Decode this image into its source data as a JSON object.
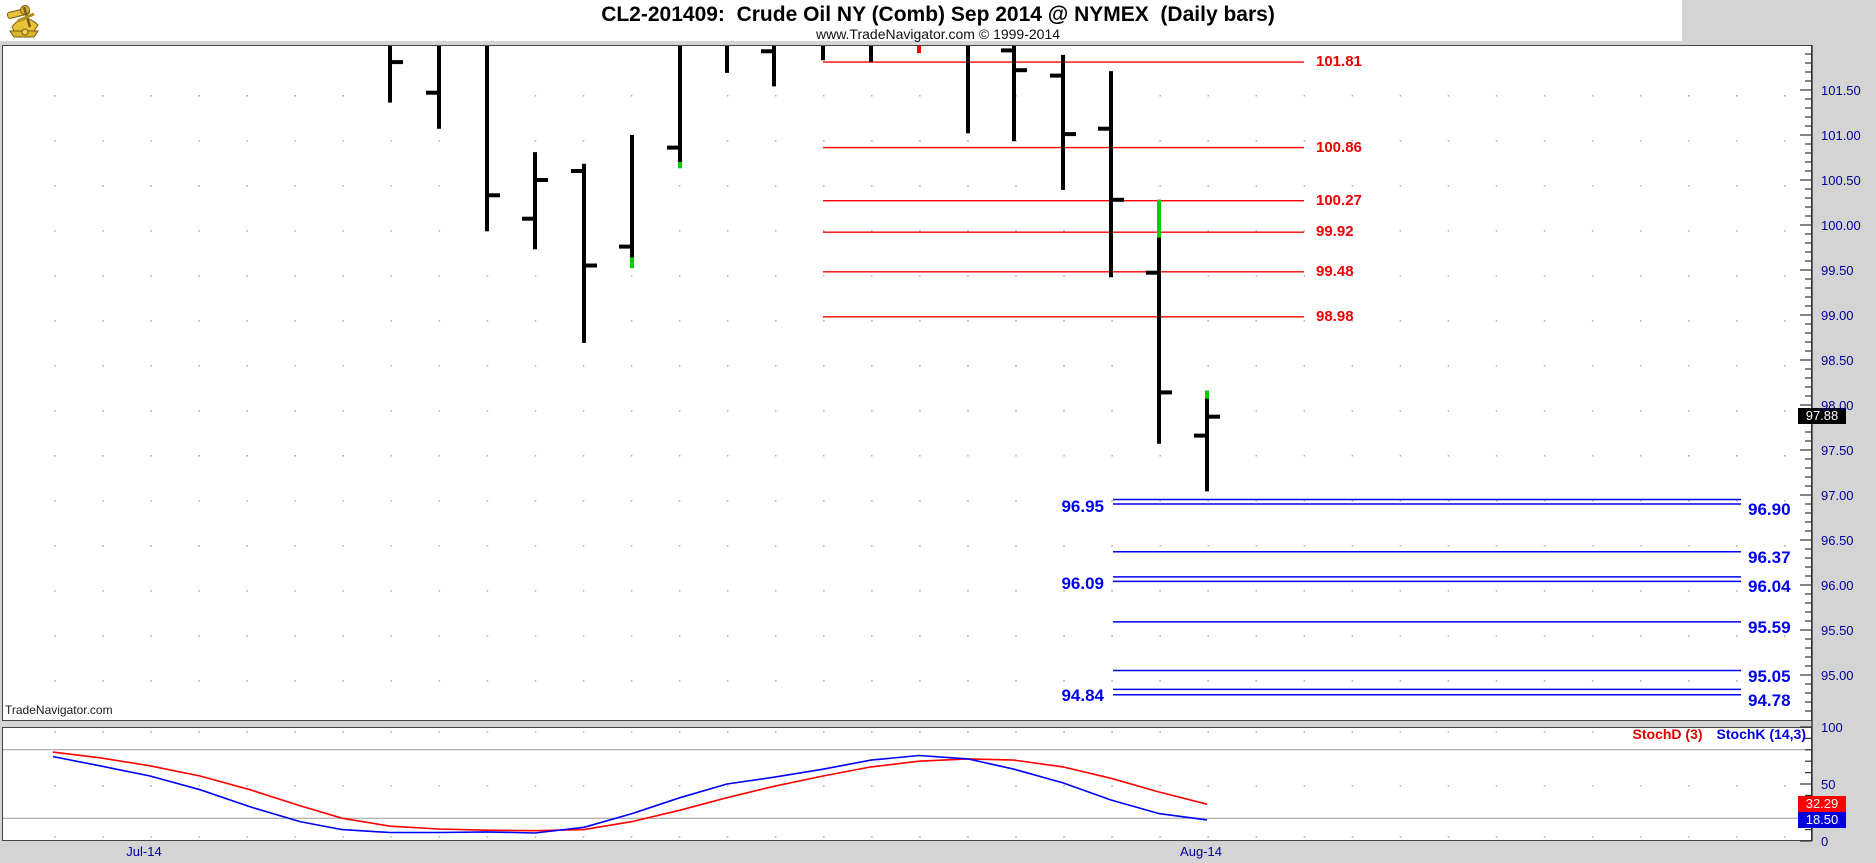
{
  "header": {
    "title": "CL2-201409:  Crude Oil NY (Comb) Sep 2014 @ NYMEX  (Daily bars)",
    "subtitle": "www.TradeNavigator.com © 1999-2014",
    "logo": "trade-navigator-sextant-logo"
  },
  "watermark": "TradeNavigator.com",
  "colors": {
    "background": "#d4d4d4",
    "pane": "#ffffff",
    "bar": "#000000",
    "bar_highlight": "#00d000",
    "resistance": "#ff0000",
    "support": "#0000ee",
    "axis_text": "#000099",
    "grid_dot": "#999999",
    "stoch_d": "#ff0000",
    "stoch_k": "#0000ff"
  },
  "chart_data": {
    "type": "bar",
    "subtype": "ohlc-daily-bars-with-stochastic",
    "symbol": "CL2-201409",
    "instrument": "Crude Oil NY (Comb) Sep 2014 @ NYMEX",
    "interval": "Daily bars",
    "price_axis": {
      "side": "right",
      "visible_range": [
        94.49,
        102.01
      ],
      "major_tick_step": 0.5,
      "minor_tick_step": 0.1,
      "ticks": [
        "101.50",
        "101.00",
        "100.50",
        "100.00",
        "99.50",
        "99.00",
        "98.50",
        "98.00",
        "97.50",
        "97.00",
        "96.50",
        "96.00",
        "95.50",
        "95.00"
      ],
      "tick_values": [
        101.5,
        101.0,
        100.5,
        100.0,
        99.5,
        99.0,
        98.5,
        98.0,
        97.5,
        97.0,
        96.5,
        96.0,
        95.5,
        95.0
      ],
      "current_price": "97.88",
      "current_price_value": 97.88
    },
    "time_axis": {
      "labels": [
        {
          "text": "Jul-14",
          "x": 144
        },
        {
          "text": "Aug-14",
          "x": 1201
        }
      ]
    },
    "bars_note": "x = pixel column of trading day; high null = bar clipped at top of visible window; green = bright-green highlighted segment [from,to] price",
    "bars": [
      {
        "x": 390,
        "high": null,
        "low": 101.36,
        "open": null,
        "close": 101.81,
        "green": null,
        "color": "black"
      },
      {
        "x": 439,
        "high": null,
        "low": 101.07,
        "open": 101.47,
        "close": null,
        "green": null,
        "color": "black"
      },
      {
        "x": 487,
        "high": null,
        "low": 99.93,
        "open": null,
        "close": 100.33,
        "green": null,
        "color": "black"
      },
      {
        "x": 535,
        "high": 100.81,
        "low": 99.73,
        "open": 100.07,
        "close": 100.5,
        "green": null,
        "color": "black"
      },
      {
        "x": 584,
        "high": 100.68,
        "low": 98.69,
        "open": 100.6,
        "close": 99.55,
        "green": null,
        "color": "black"
      },
      {
        "x": 632,
        "high": 101.0,
        "low": 99.63,
        "open": 99.76,
        "close": null,
        "green": [
          99.64,
          99.52
        ],
        "color": "black"
      },
      {
        "x": 680,
        "high": null,
        "low": 100.64,
        "open": 100.86,
        "close": null,
        "green": [
          100.7,
          100.63
        ],
        "color": "black"
      },
      {
        "x": 727,
        "high": null,
        "low": 101.69,
        "open": null,
        "close": null,
        "green": null,
        "color": "black"
      },
      {
        "x": 774,
        "high": null,
        "low": 101.54,
        "open": 101.93,
        "close": null,
        "green": null,
        "color": "black"
      },
      {
        "x": 823,
        "high": null,
        "low": 101.83,
        "open": null,
        "close": null,
        "green": null,
        "color": "black"
      },
      {
        "x": 871,
        "high": null,
        "low": 101.81,
        "open": null,
        "close": null,
        "green": null,
        "color": "black"
      },
      {
        "x": 919,
        "high": null,
        "low": 101.91,
        "open": null,
        "close": null,
        "green": null,
        "color": "red"
      },
      {
        "x": 968,
        "high": null,
        "low": 101.02,
        "open": null,
        "close": null,
        "green": null,
        "color": "black"
      },
      {
        "x": 1014,
        "high": null,
        "low": 100.93,
        "open": 101.94,
        "close": 101.72,
        "green": null,
        "color": "black"
      },
      {
        "x": 1063,
        "high": 101.89,
        "low": 100.39,
        "open": 101.66,
        "close": 101.01,
        "green": null,
        "color": "black"
      },
      {
        "x": 1111,
        "high": 101.71,
        "low": 99.42,
        "open": 101.07,
        "close": 100.28,
        "green": null,
        "color": "black"
      },
      {
        "x": 1159,
        "high": 100.28,
        "low": 97.57,
        "open": 99.47,
        "close": 98.14,
        "green": [
          100.28,
          99.86
        ],
        "color": "black"
      },
      {
        "x": 1207,
        "high": 98.16,
        "low": 97.04,
        "open": 97.66,
        "close": 97.87,
        "green": [
          98.16,
          98.07
        ],
        "color": "black"
      }
    ],
    "resistance_levels": [
      {
        "price": 101.81,
        "label": "101.81"
      },
      {
        "price": 100.86,
        "label": "100.86"
      },
      {
        "price": 100.27,
        "label": "100.27"
      },
      {
        "price": 99.92,
        "label": "99.92"
      },
      {
        "price": 99.48,
        "label": "99.48"
      },
      {
        "price": 98.98,
        "label": "98.98"
      }
    ],
    "support_levels": [
      {
        "price": 96.95,
        "label": "96.95",
        "label_side": "left"
      },
      {
        "price": 96.9,
        "label": "96.90",
        "label_side": "right"
      },
      {
        "price": 96.37,
        "label": "96.37",
        "label_side": "right"
      },
      {
        "price": 96.09,
        "label": "96.09",
        "label_side": "left"
      },
      {
        "price": 96.04,
        "label": "96.04",
        "label_side": "right"
      },
      {
        "price": 95.59,
        "label": "95.59",
        "label_side": "right"
      },
      {
        "price": 95.05,
        "label": "95.05",
        "label_side": "right"
      },
      {
        "price": 94.84,
        "label": "94.84",
        "label_side": "left"
      },
      {
        "price": 94.78,
        "label": "94.78",
        "label_side": "right"
      }
    ],
    "stochastic": {
      "axis_labels": [
        "100",
        "50",
        "0"
      ],
      "axis_values": [
        100,
        50,
        0
      ],
      "gridlines": [
        80,
        20
      ],
      "series": [
        {
          "name": "StochD (3)",
          "color": "#ff0000",
          "last_value": "32.29",
          "points": [
            [
              53,
              78
            ],
            [
              100,
              73
            ],
            [
              150,
              66
            ],
            [
              200,
              57
            ],
            [
              250,
              45
            ],
            [
              300,
              31
            ],
            [
              342,
              20
            ],
            [
              390,
              13
            ],
            [
              439,
              10.5
            ],
            [
              487,
              9.5
            ],
            [
              535,
              9
            ],
            [
              584,
              10
            ],
            [
              632,
              17
            ],
            [
              680,
              27
            ],
            [
              727,
              38
            ],
            [
              774,
              48
            ],
            [
              823,
              57
            ],
            [
              871,
              65
            ],
            [
              919,
              70
            ],
            [
              968,
              72
            ],
            [
              1014,
              71
            ],
            [
              1063,
              65
            ],
            [
              1111,
              55
            ],
            [
              1159,
              43
            ],
            [
              1207,
              32.3
            ]
          ]
        },
        {
          "name": "StochK (14,3)",
          "color": "#0000ff",
          "last_value": "18.50",
          "points": [
            [
              53,
              74
            ],
            [
              100,
              66
            ],
            [
              150,
              57
            ],
            [
              200,
              45
            ],
            [
              250,
              30
            ],
            [
              300,
              17
            ],
            [
              342,
              10
            ],
            [
              390,
              7.5
            ],
            [
              439,
              7.5
            ],
            [
              487,
              8
            ],
            [
              535,
              7
            ],
            [
              584,
              12
            ],
            [
              632,
              24
            ],
            [
              680,
              38
            ],
            [
              727,
              50
            ],
            [
              774,
              56
            ],
            [
              823,
              63
            ],
            [
              871,
              71
            ],
            [
              919,
              75
            ],
            [
              968,
              72
            ],
            [
              1014,
              63
            ],
            [
              1063,
              51
            ],
            [
              1111,
              36
            ],
            [
              1159,
              24
            ],
            [
              1207,
              18.5
            ]
          ]
        }
      ]
    }
  }
}
